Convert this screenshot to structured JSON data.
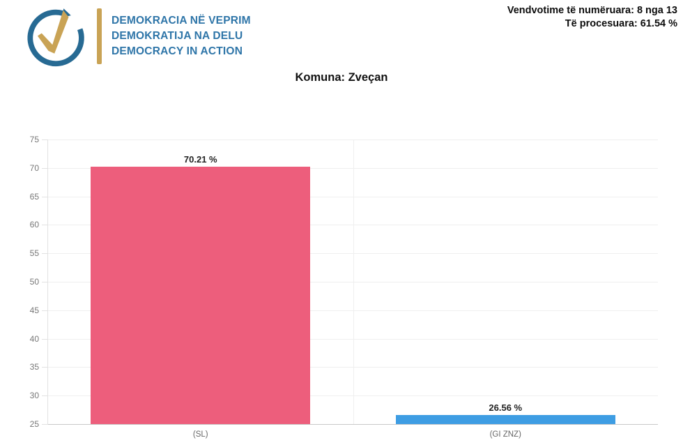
{
  "header": {
    "logo": {
      "icon": "circular-arrow-check-icon",
      "lines": [
        "DEMOKRACIA NË VEPRIM",
        "DEMOKRATIJA NA DELU",
        "DEMOCRACY IN ACTION"
      ]
    },
    "stats": {
      "line1": "Vendvotime të numëruara: 8 nga 13",
      "line2": "Të procesuara: 61.54 %"
    }
  },
  "title": "Komuna: Zveçan",
  "colors": {
    "bar_sl": "#ed5e7c",
    "bar_gi_znz": "#3e9de3",
    "logo_blue": "#276a93",
    "logo_gold": "#c9a355",
    "logo_text_blue": "#2e75a8",
    "gridline": "#efefef",
    "axis_text": "#777777"
  },
  "chart_data": {
    "type": "bar",
    "title": "Komuna: Zveçan",
    "categories": [
      "(SL)",
      "(GI ZNZ)"
    ],
    "values": [
      70.21,
      26.56
    ],
    "value_labels": [
      "70.21 %",
      "26.56 %"
    ],
    "bar_colors": [
      "#ed5e7c",
      "#3e9de3"
    ],
    "xlabel": "",
    "ylabel": "",
    "ylim": [
      25,
      75
    ],
    "ytick_step": 5,
    "yticks": [
      25,
      30,
      35,
      40,
      45,
      50,
      55,
      60,
      65,
      70,
      75
    ],
    "grid": true,
    "legend": "none"
  }
}
